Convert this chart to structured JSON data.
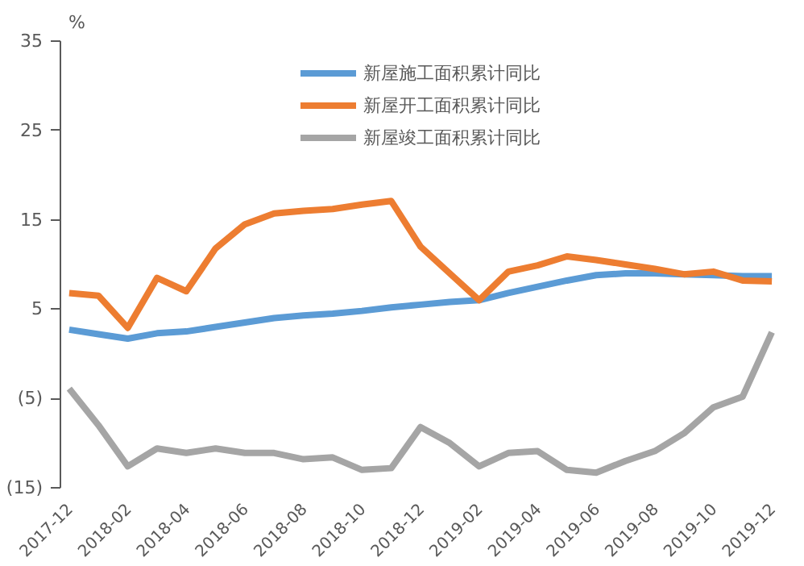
{
  "chart_data": {
    "type": "line",
    "ylabel": "%",
    "categories": [
      "2017-12",
      null,
      "2018-02",
      null,
      "2018-04",
      null,
      "2018-06",
      null,
      "2018-08",
      null,
      "2018-10",
      null,
      "2018-12",
      null,
      "2019-02",
      null,
      "2019-04",
      null,
      "2019-06",
      null,
      "2019-08",
      null,
      "2019-10",
      null,
      "2019-12"
    ],
    "series": [
      {
        "name": "新屋施工面积累计同比",
        "color": "#5b9bd5",
        "values": [
          2.7,
          2.2,
          1.7,
          2.3,
          2.5,
          3,
          3.5,
          4,
          4.3,
          4.5,
          4.8,
          5.2,
          5.5,
          5.8,
          6,
          6.8,
          7.5,
          8.2,
          8.8,
          9,
          9,
          8.9,
          8.8,
          8.7,
          8.7
        ]
      },
      {
        "name": "新屋开工面积累计同比",
        "color": "#ed7d31",
        "values": [
          6.8,
          6.5,
          2.9,
          8.5,
          7,
          11.8,
          14.5,
          15.7,
          16,
          16.2,
          16.7,
          17.1,
          12,
          9,
          6,
          9.2,
          9.9,
          10.9,
          10.5,
          10,
          9.5,
          8.9,
          9.2,
          8.2,
          8.1
        ]
      },
      {
        "name": "新屋竣工面积累计同比",
        "color": "#a5a5a5",
        "values": [
          -3.9,
          -8,
          -12.6,
          -10.6,
          -11.1,
          -10.6,
          -11.1,
          -11.1,
          -11.8,
          -11.6,
          -13,
          -12.8,
          -8.2,
          -10,
          -12.6,
          -11.1,
          -10.9,
          -13,
          -13.3,
          -12,
          -10.9,
          -8.9,
          -6,
          -4.8,
          2.4
        ]
      }
    ],
    "ylim": [
      -15,
      35
    ],
    "yticks": [
      {
        "value": -15,
        "label": "(15)"
      },
      {
        "value": -5,
        "label": "(5)"
      },
      5,
      15,
      25,
      35
    ],
    "grid": false,
    "legend": "top",
    "marker": "none",
    "line_style": "solid"
  }
}
